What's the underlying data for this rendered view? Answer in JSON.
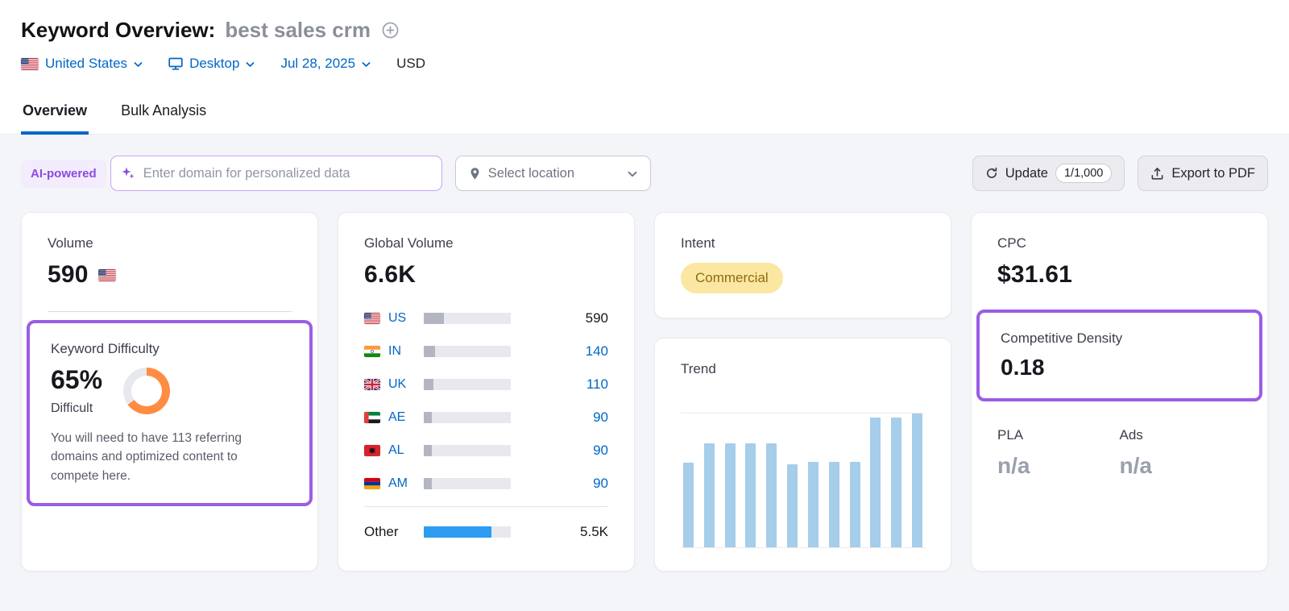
{
  "colors": {
    "link_blue": "#0067c7",
    "purple_highlight": "#9c5ce6",
    "kd_orange": "#ff8c43",
    "donut_track": "#e7e9ee",
    "country_bar_fill": "#b3b6c2",
    "other_bar_blue": "#2d9bf0",
    "trend_bar_blue": "#a6cdea",
    "intent_badge_bg": "#fbe7a2",
    "intent_badge_text": "#8d6c10"
  },
  "icons": {
    "add_keyword": "plus-circle",
    "device": "desktop-monitor",
    "dropdown": "chevron-down",
    "ai_input": "sparkles",
    "location": "map-pin",
    "update": "refresh",
    "export": "upload-tray"
  },
  "header": {
    "title": "Keyword Overview:",
    "keyword": "best sales crm",
    "country": "United States",
    "country_flag": "us",
    "device": "Desktop",
    "date": "Jul 28, 2025",
    "currency": "USD"
  },
  "tabs": [
    {
      "label": "Overview",
      "active": true
    },
    {
      "label": "Bulk Analysis",
      "active": false
    }
  ],
  "toolbar": {
    "ai_badge": "AI-powered",
    "domain_placeholder": "Enter domain for personalized data",
    "location_label": "Select location",
    "update_label": "Update",
    "update_count": "1/1,000",
    "export_label": "Export to PDF"
  },
  "volume": {
    "title": "Volume",
    "value": "590",
    "flag": "us"
  },
  "keyword_difficulty": {
    "title": "Keyword Difficulty",
    "value": "65%",
    "percent": 65,
    "level": "Difficult",
    "note": "You will need to have 113 referring domains and optimized content to compete here."
  },
  "global_volume": {
    "title": "Global Volume",
    "value": "6.6K",
    "countries": [
      {
        "flag": "us",
        "code": "US",
        "value": "590",
        "share": 23,
        "emphasis": "dark"
      },
      {
        "flag": "in",
        "code": "IN",
        "value": "140",
        "share": 13,
        "emphasis": "blue"
      },
      {
        "flag": "uk",
        "code": "UK",
        "value": "110",
        "share": 11,
        "emphasis": "blue"
      },
      {
        "flag": "ae",
        "code": "AE",
        "value": "90",
        "share": 9,
        "emphasis": "blue"
      },
      {
        "flag": "al",
        "code": "AL",
        "value": "90",
        "share": 9,
        "emphasis": "blue"
      },
      {
        "flag": "am",
        "code": "AM",
        "value": "90",
        "share": 9,
        "emphasis": "blue"
      }
    ],
    "other": {
      "label": "Other",
      "value": "5.5K",
      "share": 78
    }
  },
  "intent": {
    "title": "Intent",
    "badge": "Commercial"
  },
  "trend": {
    "title": "Trend",
    "chart_data": {
      "type": "bar",
      "values": [
        63,
        78,
        78,
        78,
        78,
        62,
        64,
        64,
        64,
        97,
        97,
        100
      ],
      "ylim": [
        0,
        100
      ],
      "x_labels": [],
      "title": "Trend",
      "note": "unlabeled monthly search trend bars"
    }
  },
  "cpc": {
    "title": "CPC",
    "value": "$31.61"
  },
  "competitive_density": {
    "title": "Competitive Density",
    "value": "0.18"
  },
  "pla": {
    "label": "PLA",
    "value": "n/a"
  },
  "ads": {
    "label": "Ads",
    "value": "n/a"
  }
}
